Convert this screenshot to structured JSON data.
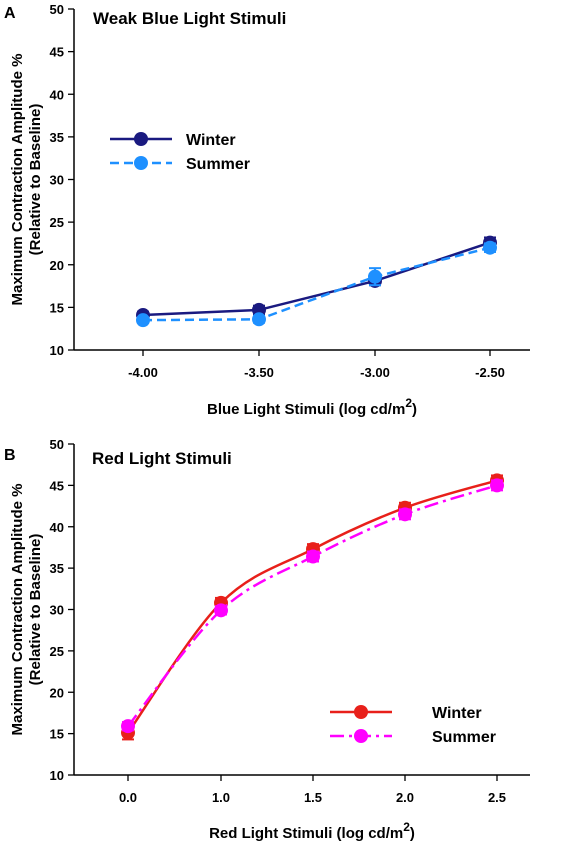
{
  "chart_data": [
    {
      "type": "line",
      "panel_label": "A",
      "title": "Weak Blue Light Stimuli",
      "xlabel": "Blue Light Stimuli (log cd/m",
      "xlabel_superscript": "2",
      "xlabel_suffix": ")",
      "ylabel_line1": "Maximum Contraction Amplitude %",
      "ylabel_line2": "(Relative to Baseline)",
      "categories": [
        "-4.00",
        "-3.50",
        "-3.00",
        "-2.50"
      ],
      "ylim": [
        10,
        50
      ],
      "yticks": [
        "10",
        "15",
        "20",
        "25",
        "30",
        "35",
        "40",
        "45",
        "50"
      ],
      "grid": false,
      "legend_position": "center-left",
      "series": [
        {
          "name": "Winter",
          "values": [
            14.1,
            14.7,
            18.1,
            22.6
          ],
          "errors": [
            0.4,
            0.5,
            0.5,
            0.6
          ],
          "color": "#1a1a80",
          "dash": "solid"
        },
        {
          "name": "Summer",
          "values": [
            13.5,
            13.6,
            18.6,
            22.0
          ],
          "errors": [
            0.3,
            0.4,
            1.0,
            0.5
          ],
          "color": "#1e90ff",
          "dash": "dashed"
        }
      ]
    },
    {
      "type": "line",
      "panel_label": "B",
      "title": "Red Light Stimuli",
      "xlabel": "Red Light Stimuli (log cd/m",
      "xlabel_superscript": "2",
      "xlabel_suffix": ")",
      "ylabel_line1": "Maximum Contraction Amplitude %",
      "ylabel_line2": "(Relative to Baseline)",
      "categories": [
        "0.0",
        "1.0",
        "1.5",
        "2.0",
        "2.5"
      ],
      "ylim": [
        10,
        50
      ],
      "yticks": [
        "10",
        "15",
        "20",
        "25",
        "30",
        "35",
        "40",
        "45",
        "50"
      ],
      "grid": false,
      "legend_position": "bottom-right",
      "series": [
        {
          "name": "Winter",
          "values": [
            15.1,
            30.8,
            37.3,
            42.3,
            45.6
          ],
          "errors": [
            0.8,
            0.6,
            0.6,
            0.6,
            0.6
          ],
          "color": "#e8201a",
          "dash": "solid"
        },
        {
          "name": "Summer",
          "values": [
            15.9,
            29.9,
            36.4,
            41.5,
            45.0
          ],
          "errors": [
            0.5,
            0.5,
            0.6,
            0.6,
            0.6
          ],
          "color": "#ff00ff",
          "dash": "dashed"
        }
      ]
    }
  ]
}
